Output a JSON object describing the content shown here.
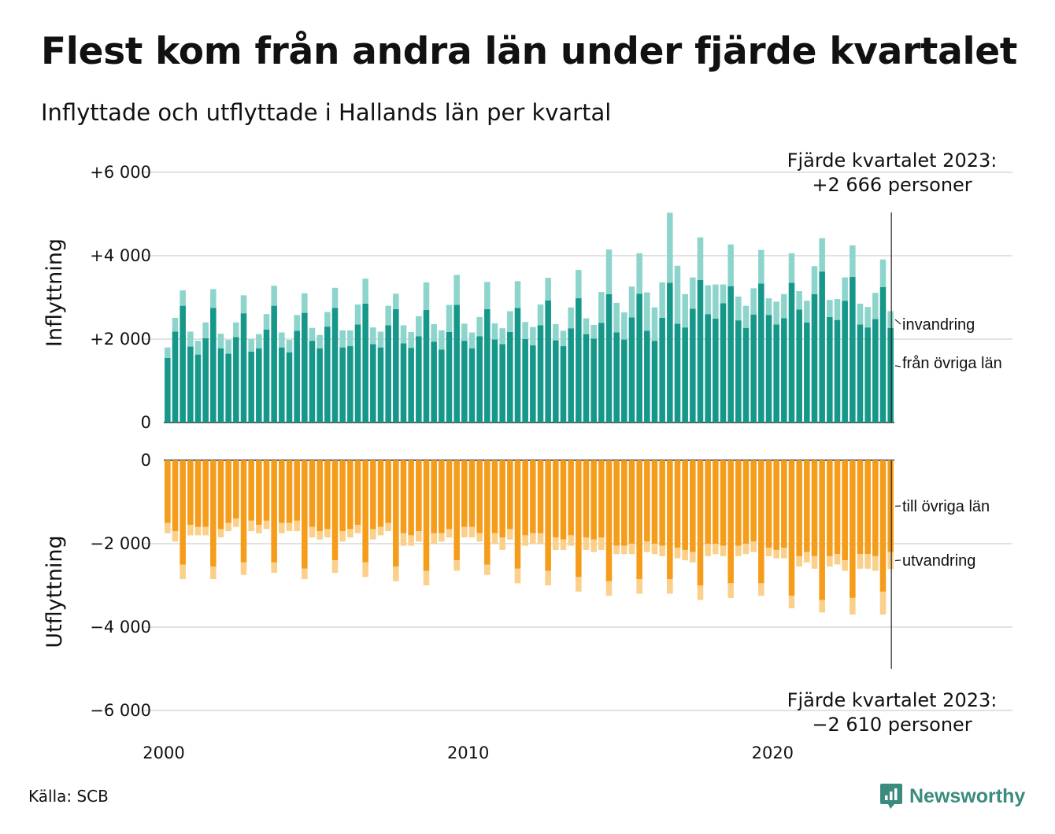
{
  "title": "Flest kom från andra län under fjärde kvartalet",
  "subtitle": "Inflyttade och utflyttade i Hallands län per kvartal",
  "source": "Källa: SCB",
  "brand": {
    "name": "Newsworthy",
    "color": "#3b8c7f",
    "icon": "newsworthy-logo-icon"
  },
  "chart_data": {
    "type": "bar",
    "stacked": true,
    "x_tick_labels": [
      "2000",
      "2010",
      "2020"
    ],
    "panels": [
      {
        "name": "inflyttning",
        "ylabel": "Inflyttning",
        "ylim": [
          0,
          6000
        ],
        "y_ticks": [
          0,
          2000,
          4000,
          6000
        ],
        "y_tick_labels": [
          "0",
          "+2 000",
          "+4 000",
          "+6 000"
        ],
        "series": [
          {
            "name": "från övriga län",
            "color": "#15978a",
            "values": [
              1550,
              2180,
              2800,
              1820,
              1630,
              2020,
              2750,
              1780,
              1650,
              2050,
              2620,
              1700,
              1780,
              2230,
              2800,
              1800,
              1680,
              2200,
              2630,
              1960,
              1780,
              2300,
              2750,
              1800,
              1830,
              2350,
              2850,
              1880,
              1800,
              2330,
              2720,
              1900,
              1790,
              2070,
              2700,
              1940,
              1750,
              2170,
              2820,
              1960,
              1780,
              2070,
              2720,
              1990,
              1880,
              2170,
              2750,
              2000,
              1850,
              2330,
              2930,
              1970,
              1830,
              2260,
              2980,
              2120,
              2010,
              2390,
              3080,
              2160,
              1990,
              2520,
              3090,
              2200,
              1960,
              2510,
              3350,
              2370,
              2280,
              2730,
              3420,
              2600,
              2490,
              2860,
              3270,
              2450,
              2270,
              2590,
              3330,
              2580,
              2350,
              2500,
              3350,
              2710,
              2400,
              3080,
              3620,
              2530,
              2460,
              2920,
              3490,
              2350,
              2280,
              2480,
              3250,
              2270
            ]
          },
          {
            "name": "invandring",
            "color": "#8dd5cc",
            "values": [
              250,
              330,
              370,
              360,
              330,
              380,
              450,
              350,
              330,
              350,
              430,
              300,
              340,
              370,
              480,
              360,
              300,
              380,
              470,
              310,
              320,
              350,
              480,
              410,
              380,
              480,
              600,
              400,
              380,
              470,
              370,
              430,
              380,
              480,
              660,
              420,
              460,
              650,
              720,
              410,
              380,
              460,
              650,
              390,
              380,
              500,
              640,
              410,
              440,
              500,
              540,
              390,
              370,
              500,
              680,
              380,
              330,
              740,
              1070,
              710,
              650,
              740,
              970,
              920,
              800,
              850,
              1680,
              1390,
              800,
              750,
              1020,
              690,
              820,
              450,
              1000,
              570,
              530,
              630,
              810,
              400,
              550,
              580,
              710,
              440,
              520,
              670,
              800,
              410,
              500,
              560,
              760,
              500,
              490,
              630,
              660,
              400
            ]
          }
        ]
      },
      {
        "name": "utflyttning",
        "ylabel": "Utflyttning",
        "ylim": [
          -6000,
          0
        ],
        "y_ticks": [
          -6000,
          -4000,
          -2000,
          0
        ],
        "y_tick_labels": [
          "−6 000",
          "−4 000",
          "−2 000",
          "0"
        ],
        "series": [
          {
            "name": "till övriga län",
            "color": "#f59c1a",
            "values": [
              -1500,
              -1700,
              -2500,
              -1550,
              -1600,
              -1600,
              -2550,
              -1650,
              -1500,
              -1400,
              -2450,
              -1450,
              -1550,
              -1450,
              -2450,
              -1500,
              -1500,
              -1450,
              -2600,
              -1600,
              -1700,
              -1650,
              -2400,
              -1700,
              -1650,
              -1550,
              -2450,
              -1650,
              -1600,
              -1500,
              -2550,
              -1750,
              -1800,
              -1700,
              -2650,
              -1750,
              -1750,
              -1650,
              -2400,
              -1600,
              -1600,
              -1750,
              -2500,
              -1750,
              -1850,
              -1650,
              -2600,
              -1800,
              -1750,
              -1750,
              -2650,
              -1850,
              -1900,
              -1800,
              -2800,
              -1850,
              -1900,
              -1850,
              -2900,
              -2050,
              -2050,
              -2000,
              -2850,
              -1950,
              -2000,
              -2050,
              -2850,
              -2100,
              -2150,
              -2200,
              -3000,
              -2000,
              -2000,
              -2050,
              -2950,
              -2050,
              -2000,
              -1950,
              -2950,
              -2100,
              -2150,
              -2100,
              -3250,
              -2300,
              -2200,
              -2300,
              -3350,
              -2300,
              -2250,
              -2400,
              -3300,
              -2250,
              -2250,
              -2300,
              -3150,
              -2200
            ]
          },
          {
            "name": "utvandring",
            "color": "#fad08a",
            "values": [
              -250,
              -250,
              -350,
              -250,
              -200,
              -200,
              -300,
              -200,
              -200,
              -200,
              -300,
              -250,
              -200,
              -200,
              -250,
              -250,
              -200,
              -250,
              -250,
              -250,
              -200,
              -200,
              -300,
              -250,
              -200,
              -200,
              -350,
              -250,
              -200,
              -200,
              -350,
              -300,
              -250,
              -250,
              -350,
              -250,
              -200,
              -200,
              -250,
              -250,
              -250,
              -200,
              -250,
              -250,
              -300,
              -250,
              -350,
              -250,
              -250,
              -250,
              -350,
              -300,
              -250,
              -250,
              -350,
              -300,
              -300,
              -300,
              -350,
              -200,
              -200,
              -250,
              -350,
              -250,
              -250,
              -250,
              -350,
              -250,
              -250,
              -250,
              -350,
              -300,
              -250,
              -250,
              -350,
              -250,
              -250,
              -250,
              -300,
              -200,
              -200,
              -250,
              -300,
              -250,
              -250,
              -300,
              -300,
              -250,
              -250,
              -250,
              -400,
              -350,
              -350,
              -350,
              -550,
              -410
            ]
          }
        ]
      }
    ],
    "annotations": [
      {
        "panel": "inflyttning",
        "line1": "Fjärde kvartalet 2023:",
        "line2": "+2 666 personer"
      },
      {
        "panel": "utflyttning",
        "line1": "Fjärde kvartalet 2023:",
        "line2": "−2 610 personer"
      }
    ]
  }
}
